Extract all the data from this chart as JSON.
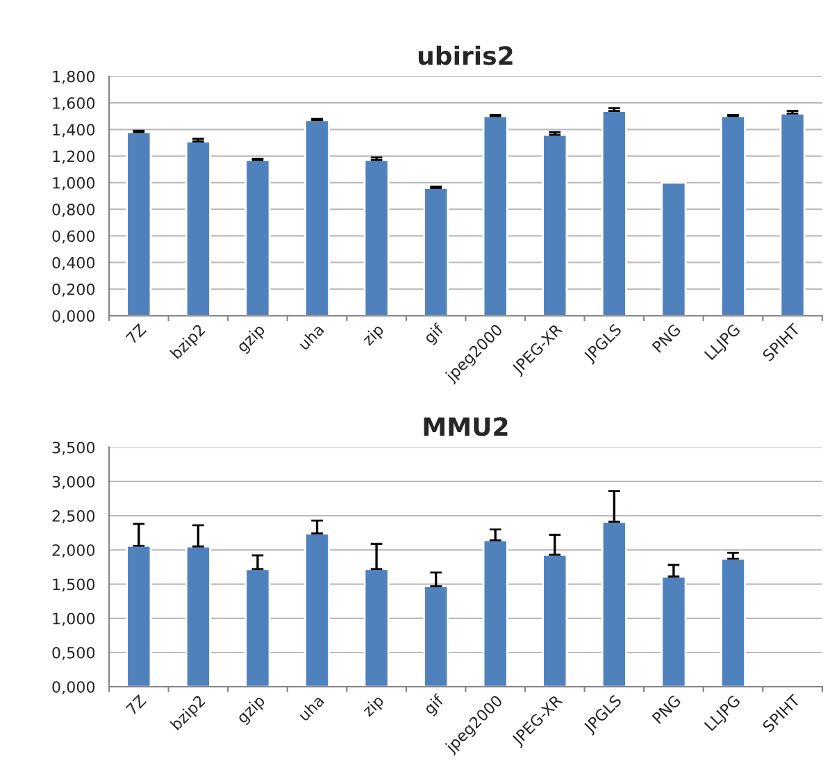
{
  "chart_data": [
    {
      "type": "bar",
      "title": "ubiris2",
      "categories": [
        "7Z",
        "bzip2",
        "gzip",
        "uha",
        "zip",
        "gif",
        "jpeg2000",
        "JPEG-XR",
        "JPGLS",
        "PNG",
        "LLJPG",
        "SPIHT"
      ],
      "series": [
        {
          "color": "#4f81bd",
          "values": [
            1.38,
            1.31,
            1.17,
            1.47,
            1.17,
            0.96,
            1.5,
            1.36,
            1.54,
            1.0,
            1.5,
            1.52
          ],
          "errors": [
            [
              1.38,
              1.39
            ],
            [
              1.31,
              1.33
            ],
            [
              1.17,
              1.18
            ],
            [
              1.47,
              1.48
            ],
            [
              1.17,
              1.19
            ],
            [
              0.96,
              0.97
            ],
            [
              1.5,
              1.51
            ],
            [
              1.36,
              1.38
            ],
            [
              1.54,
              1.56
            ],
            null,
            [
              1.5,
              1.51
            ],
            [
              1.52,
              1.54
            ]
          ]
        }
      ],
      "ylim": [
        0,
        1.8
      ],
      "yticks": [
        {
          "value": 0,
          "label": "0,000"
        },
        {
          "value": 0.2,
          "label": "0,200"
        },
        {
          "value": 0.4,
          "label": "0,400"
        },
        {
          "value": 0.6,
          "label": "0,600"
        },
        {
          "value": 0.8,
          "label": "0,800"
        },
        {
          "value": 1.0,
          "label": "1,000"
        },
        {
          "value": 1.2,
          "label": "1,200"
        },
        {
          "value": 1.4,
          "label": "1,400"
        },
        {
          "value": 1.6,
          "label": "1,600"
        },
        {
          "value": 1.8,
          "label": "1,800"
        }
      ],
      "grid": "y",
      "legend": false
    },
    {
      "type": "bar",
      "title": "MMU2",
      "categories": [
        "7Z",
        "bzip2",
        "gzip",
        "uha",
        "zip",
        "gif",
        "jpeg2000",
        "JPEG-XR",
        "JPGLS",
        "PNG",
        "LLJPG",
        "SPIHT"
      ],
      "series": [
        {
          "color": "#4f81bd",
          "values": [
            2.06,
            2.05,
            1.72,
            2.24,
            1.72,
            1.47,
            2.14,
            1.93,
            2.41,
            1.61,
            1.87,
            null
          ],
          "errors": [
            [
              2.06,
              2.38
            ],
            [
              2.05,
              2.36
            ],
            [
              1.72,
              1.92
            ],
            [
              2.24,
              2.43
            ],
            [
              1.72,
              2.09
            ],
            [
              1.47,
              1.67
            ],
            [
              2.14,
              2.3
            ],
            [
              1.93,
              2.22
            ],
            [
              2.41,
              2.86
            ],
            [
              1.61,
              1.78
            ],
            [
              1.87,
              1.96
            ],
            null
          ]
        }
      ],
      "ylim": [
        0,
        3.5
      ],
      "yticks": [
        {
          "value": 0,
          "label": "0,000"
        },
        {
          "value": 0.5,
          "label": "0,500"
        },
        {
          "value": 1.0,
          "label": "1,000"
        },
        {
          "value": 1.5,
          "label": "1,500"
        },
        {
          "value": 2.0,
          "label": "2,000"
        },
        {
          "value": 2.5,
          "label": "2,500"
        },
        {
          "value": 3.0,
          "label": "3,000"
        },
        {
          "value": 3.5,
          "label": "3,500"
        }
      ],
      "grid": "y",
      "legend": false
    }
  ]
}
